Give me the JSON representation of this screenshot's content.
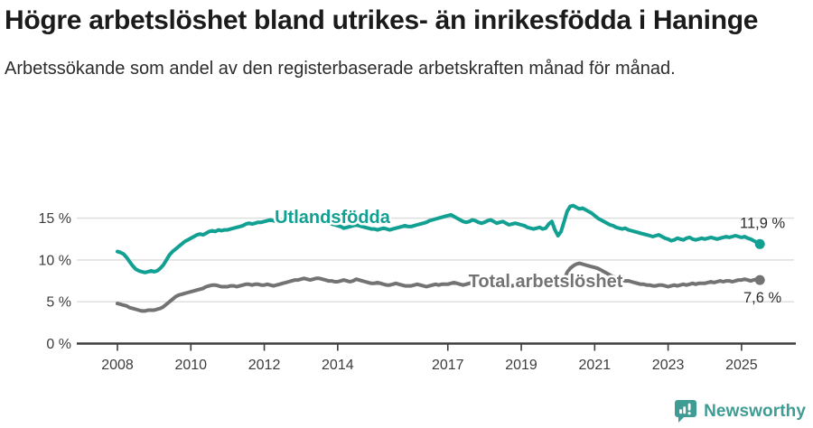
{
  "header": {
    "title": "Högre arbetslöshet bland utrikes- än inrikesfödda i Haninge",
    "subtitle": "Arbetssökande som andel av den registerbaserade arbetskraften månad för månad."
  },
  "footer": {
    "brand": "Newsworthy",
    "logo_icon": "speech-bubble-bar-chart-icon"
  },
  "colors": {
    "series_teal": "#12a093",
    "series_gray": "#737373",
    "brand_teal": "#3e9c95",
    "axis": "#3d3d3d",
    "grid": "#dcdcdc",
    "tick_text": "#3c3c3c",
    "value_text": "#2b2b2b",
    "title_text": "#1b1b1b"
  },
  "chart_data": {
    "type": "line",
    "x_unit": "month",
    "x_start": "2008-01",
    "x_end": "2025-07",
    "grid": true,
    "legend_position": "inline-labels",
    "xticks": [
      2008,
      2010,
      2012,
      2014,
      2017,
      2019,
      2021,
      2023,
      2025
    ],
    "yticks": [
      {
        "value": 0,
        "label": "0 %"
      },
      {
        "value": 5,
        "label": "5 %"
      },
      {
        "value": 10,
        "label": "10 %"
      },
      {
        "value": 15,
        "label": "15 %"
      }
    ],
    "ylim": [
      0,
      16.8
    ],
    "series": [
      {
        "name": "Utlandsfödda",
        "color": "#12a093",
        "end_label": "11,9 %",
        "end_value": 11.9,
        "values": [
          11.0,
          10.9,
          10.7,
          10.3,
          9.8,
          9.3,
          8.9,
          8.7,
          8.6,
          8.5,
          8.6,
          8.7,
          8.6,
          8.7,
          9.0,
          9.4,
          10.0,
          10.6,
          11.0,
          11.3,
          11.6,
          11.9,
          12.2,
          12.4,
          12.6,
          12.8,
          13.0,
          13.1,
          13.0,
          13.2,
          13.4,
          13.5,
          13.4,
          13.6,
          13.5,
          13.6,
          13.6,
          13.7,
          13.8,
          13.9,
          14.0,
          14.1,
          14.3,
          14.4,
          14.3,
          14.4,
          14.5,
          14.5,
          14.6,
          14.7,
          14.8,
          14.7,
          14.6,
          14.7,
          14.8,
          14.9,
          14.8,
          14.7,
          14.8,
          14.9,
          15.0,
          15.1,
          15.0,
          14.9,
          15.0,
          15.1,
          15.0,
          14.9,
          14.7,
          14.5,
          14.3,
          14.2,
          14.1,
          14.0,
          13.8,
          13.9,
          14.0,
          14.1,
          14.2,
          14.1,
          14.0,
          13.9,
          13.8,
          13.7,
          13.7,
          13.6,
          13.7,
          13.8,
          13.7,
          13.6,
          13.7,
          13.8,
          13.9,
          14.0,
          14.1,
          14.0,
          14.0,
          14.1,
          14.2,
          14.3,
          14.4,
          14.5,
          14.7,
          14.8,
          14.9,
          15.0,
          15.1,
          15.2,
          15.3,
          15.4,
          15.2,
          15.0,
          14.8,
          14.6,
          14.5,
          14.6,
          14.8,
          14.7,
          14.5,
          14.4,
          14.5,
          14.7,
          14.8,
          14.6,
          14.4,
          14.5,
          14.6,
          14.4,
          14.2,
          14.3,
          14.4,
          14.3,
          14.2,
          14.1,
          13.9,
          13.8,
          13.7,
          13.8,
          13.9,
          13.7,
          13.8,
          14.3,
          14.6,
          13.6,
          12.9,
          13.4,
          14.6,
          15.8,
          16.4,
          16.5,
          16.3,
          16.1,
          16.2,
          16.0,
          15.8,
          15.6,
          15.3,
          15.0,
          14.8,
          14.6,
          14.4,
          14.2,
          14.1,
          13.9,
          13.8,
          13.7,
          13.8,
          13.6,
          13.5,
          13.4,
          13.3,
          13.2,
          13.1,
          13.0,
          12.9,
          12.8,
          12.9,
          13.0,
          12.8,
          12.6,
          12.5,
          12.3,
          12.4,
          12.6,
          12.5,
          12.4,
          12.6,
          12.7,
          12.5,
          12.4,
          12.5,
          12.6,
          12.5,
          12.6,
          12.7,
          12.6,
          12.5,
          12.6,
          12.7,
          12.8,
          12.7,
          12.8,
          12.9,
          12.8,
          12.7,
          12.8,
          12.6,
          12.5,
          12.3,
          12.1,
          11.9
        ]
      },
      {
        "name": "Total arbetslöshet",
        "color": "#737373",
        "end_label": "7,6 %",
        "end_value": 7.6,
        "values": [
          4.8,
          4.7,
          4.6,
          4.5,
          4.3,
          4.2,
          4.1,
          4.0,
          3.9,
          3.9,
          4.0,
          4.0,
          4.0,
          4.1,
          4.2,
          4.4,
          4.7,
          5.0,
          5.3,
          5.6,
          5.8,
          5.9,
          6.0,
          6.1,
          6.2,
          6.3,
          6.4,
          6.5,
          6.6,
          6.8,
          6.9,
          7.0,
          7.0,
          6.9,
          6.8,
          6.8,
          6.8,
          6.9,
          6.9,
          6.8,
          6.9,
          7.0,
          7.1,
          7.1,
          7.0,
          7.1,
          7.1,
          7.0,
          7.0,
          7.1,
          7.0,
          6.9,
          7.0,
          7.1,
          7.2,
          7.3,
          7.4,
          7.5,
          7.6,
          7.6,
          7.7,
          7.8,
          7.7,
          7.6,
          7.7,
          7.8,
          7.8,
          7.7,
          7.6,
          7.5,
          7.5,
          7.4,
          7.4,
          7.5,
          7.6,
          7.5,
          7.4,
          7.5,
          7.7,
          7.6,
          7.5,
          7.4,
          7.3,
          7.2,
          7.2,
          7.3,
          7.2,
          7.1,
          7.0,
          7.0,
          7.1,
          7.2,
          7.1,
          7.0,
          6.9,
          6.9,
          6.9,
          7.0,
          7.1,
          7.0,
          6.9,
          6.8,
          6.9,
          7.0,
          7.1,
          7.0,
          7.1,
          7.1,
          7.1,
          7.2,
          7.3,
          7.2,
          7.1,
          7.0,
          7.1,
          7.2,
          7.3,
          7.2,
          7.1,
          7.2,
          7.1,
          7.0,
          7.0,
          6.9,
          6.8,
          6.9,
          7.0,
          7.0,
          6.9,
          6.9,
          7.0,
          7.0,
          7.0,
          6.9,
          6.8,
          6.9,
          7.0,
          7.1,
          7.1,
          7.0,
          7.1,
          7.2,
          7.1,
          7.0,
          7.0,
          7.1,
          7.7,
          8.5,
          9.0,
          9.3,
          9.5,
          9.6,
          9.5,
          9.4,
          9.3,
          9.2,
          9.1,
          9.0,
          8.8,
          8.6,
          8.4,
          8.2,
          8.0,
          7.9,
          7.7,
          7.6,
          7.5,
          7.5,
          7.4,
          7.3,
          7.2,
          7.1,
          7.1,
          7.0,
          7.0,
          6.9,
          6.9,
          7.0,
          7.0,
          6.9,
          6.8,
          6.9,
          7.0,
          6.9,
          7.0,
          7.1,
          7.0,
          7.1,
          7.2,
          7.1,
          7.2,
          7.2,
          7.2,
          7.3,
          7.4,
          7.3,
          7.4,
          7.5,
          7.4,
          7.5,
          7.5,
          7.4,
          7.5,
          7.6,
          7.6,
          7.7,
          7.6,
          7.5,
          7.6,
          7.7,
          7.6
        ]
      }
    ]
  }
}
